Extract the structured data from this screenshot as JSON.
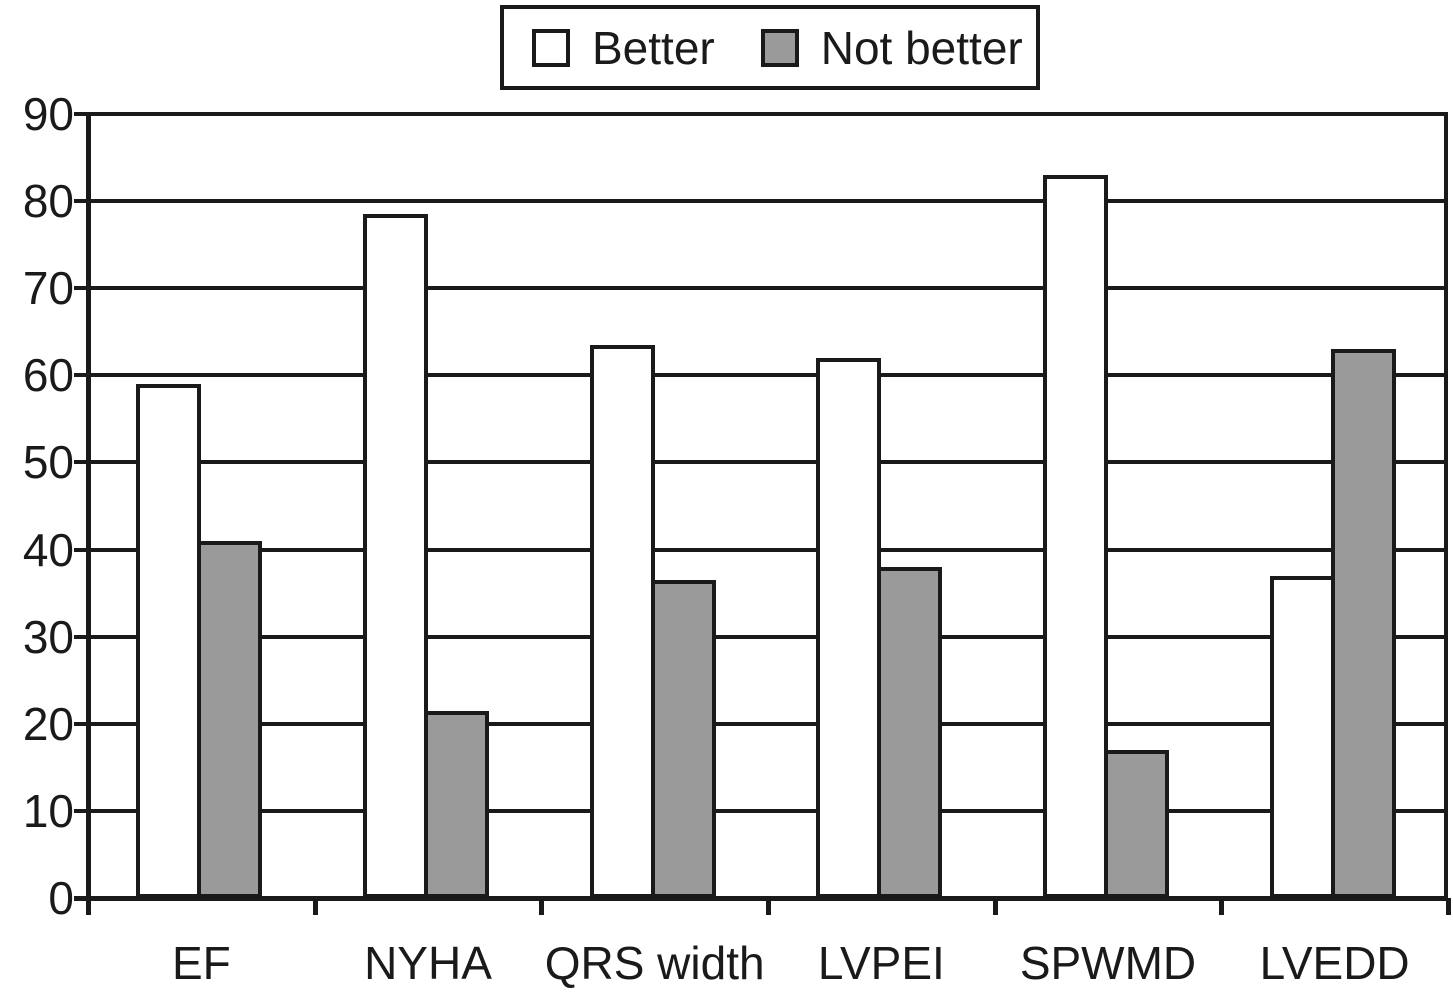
{
  "chart_data": {
    "type": "bar",
    "title": "",
    "categories": [
      "EF",
      "NYHA",
      "QRS width",
      "LVPEI",
      "SPWMD",
      "LVEDD"
    ],
    "series": [
      {
        "name": "Better",
        "fill": "#ffffff",
        "values": [
          59,
          78.5,
          63.5,
          62,
          83,
          37
        ]
      },
      {
        "name": "Not better",
        "fill": "#9a9a9a",
        "values": [
          41,
          21.5,
          36.5,
          38,
          17,
          63
        ]
      }
    ],
    "xlabel": "",
    "ylabel": "",
    "ylim": [
      0,
      90
    ],
    "ytick_step": 10,
    "ytick_labels": [
      "0",
      "10",
      "20",
      "30",
      "40",
      "50",
      "60",
      "70",
      "80",
      "90"
    ],
    "grid": "horizontal",
    "legend_position": "top-center",
    "line_color": "#1a1a1a",
    "background_color": "#ffffff"
  }
}
